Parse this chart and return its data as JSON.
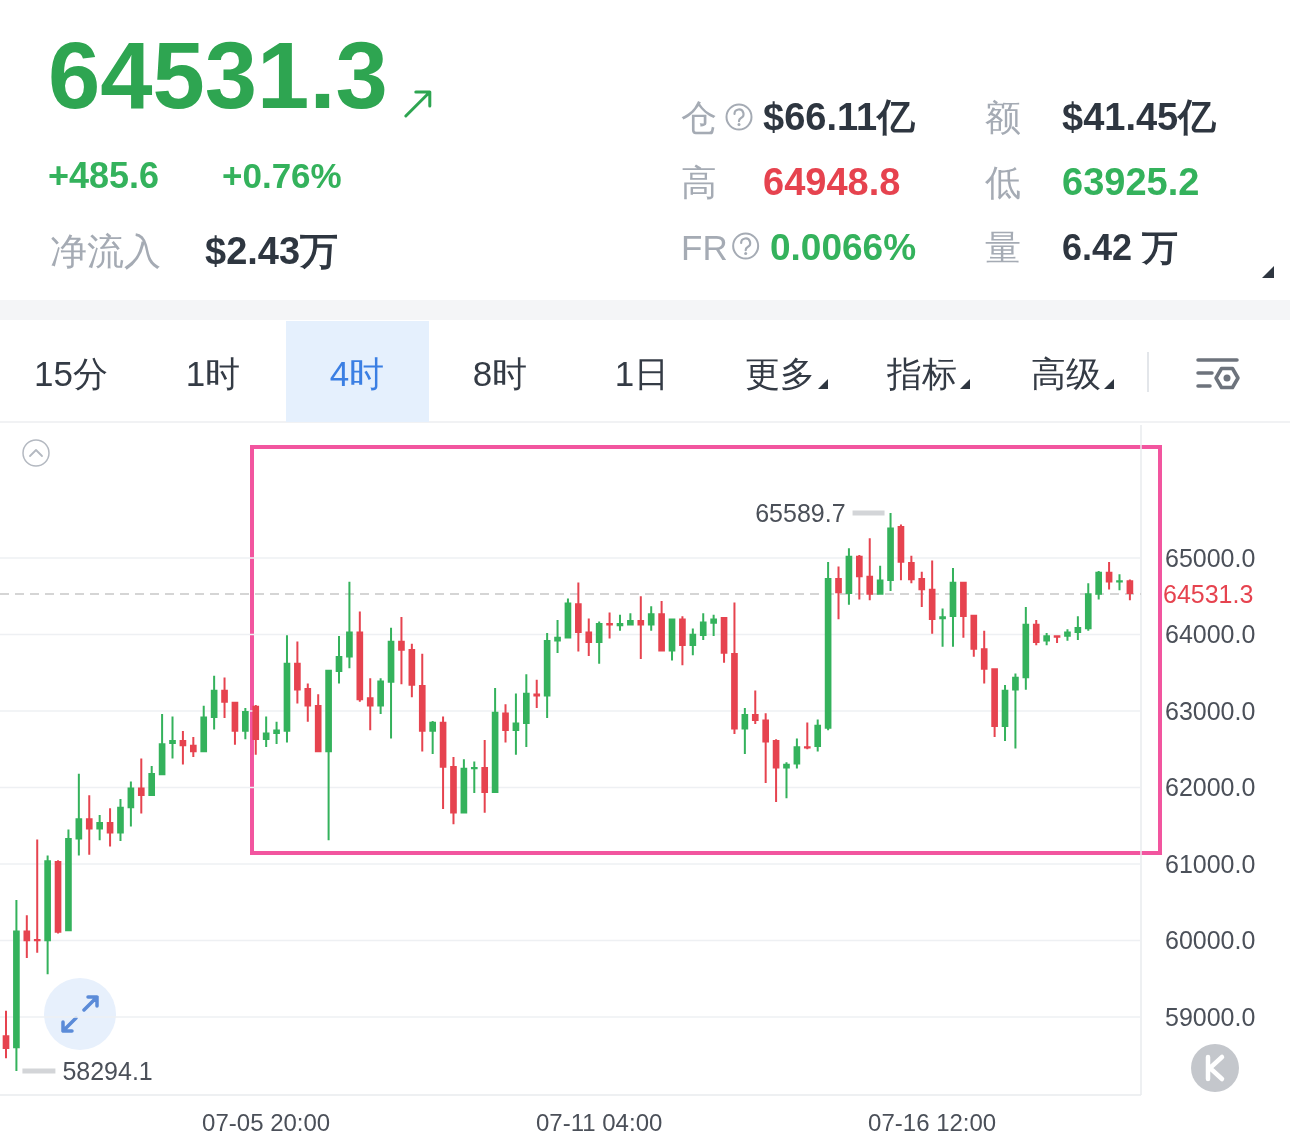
{
  "chart_data": [
    {
      "type": "other",
      "annotations": [
        "64531.3",
        "+485.6",
        "+0.76%",
        "净流入",
        "$2.43万",
        "仓",
        "$66.11亿",
        "额",
        "$41.45亿",
        "高",
        "64948.8",
        "低",
        "63925.2",
        "FR",
        "0.0066%",
        "量",
        "6.42 万"
      ]
    },
    {
      "type": "other",
      "annotations": [
        "15分",
        "1时",
        "4时",
        "8时",
        "1日",
        "更多",
        "指标",
        "高级"
      ]
    },
    {
      "type": "candlestick",
      "categories": [
        null,
        null,
        null,
        null,
        null,
        null,
        null,
        null,
        null,
        null,
        null,
        null,
        null,
        null,
        null,
        null,
        null,
        null,
        null,
        null,
        null,
        null,
        null,
        null,
        null,
        "07-05 20:00",
        null,
        null,
        null,
        null,
        null,
        null,
        null,
        null,
        null,
        null,
        null,
        null,
        null,
        null,
        null,
        null,
        null,
        null,
        null,
        null,
        null,
        null,
        null,
        null,
        null,
        null,
        null,
        null,
        null,
        null,
        null,
        "07-11 04:00",
        null,
        null,
        null,
        null,
        null,
        null,
        null,
        null,
        null,
        null,
        null,
        null,
        null,
        null,
        null,
        null,
        null,
        null,
        null,
        null,
        null,
        null,
        null,
        null,
        null,
        null,
        null,
        null,
        null,
        null,
        null,
        "07-16 12:00",
        null,
        null,
        null,
        null,
        null,
        null,
        null,
        null,
        null,
        null,
        null,
        null,
        null,
        null,
        null,
        null,
        null,
        null,
        null
      ],
      "ohlc": [
        [
          58760,
          59080,
          58460,
          58580
        ],
        [
          58590,
          60530,
          58294.1,
          60130
        ],
        [
          60130,
          60330,
          59770,
          59990
        ],
        [
          60020,
          61320,
          59840,
          59990
        ],
        [
          59990,
          61110,
          59560,
          61050
        ],
        [
          61040,
          61050,
          60090,
          60100
        ],
        [
          60120,
          61450,
          60120,
          61340
        ],
        [
          61320,
          62180,
          61110,
          61600
        ],
        [
          61600,
          61900,
          61120,
          61450
        ],
        [
          61450,
          61640,
          61310,
          61550
        ],
        [
          61550,
          61730,
          61230,
          61400
        ],
        [
          61400,
          61850,
          61300,
          61750
        ],
        [
          61730,
          62080,
          61490,
          62000
        ],
        [
          62000,
          62380,
          61660,
          61890
        ],
        [
          61890,
          62280,
          61890,
          62190
        ],
        [
          62160,
          62960,
          62160,
          62580
        ],
        [
          62570,
          62930,
          62380,
          62620
        ],
        [
          62620,
          62740,
          62300,
          62540
        ],
        [
          62560,
          62660,
          62400,
          62460
        ],
        [
          62460,
          63070,
          62460,
          62930
        ],
        [
          62910,
          63460,
          62760,
          63280
        ],
        [
          63280,
          63440,
          62910,
          63110
        ],
        [
          63120,
          63120,
          62560,
          62730
        ],
        [
          62730,
          63040,
          62630,
          63000
        ],
        [
          63070,
          63080,
          62430,
          62620
        ],
        [
          62620,
          62930,
          62530,
          62720
        ],
        [
          62700,
          62860,
          62570,
          62760
        ],
        [
          62730,
          63990,
          62590,
          63630
        ],
        [
          63630,
          63910,
          63100,
          63270
        ],
        [
          63300,
          63360,
          62860,
          63060
        ],
        [
          63080,
          63220,
          62460,
          62460
        ],
        [
          62460,
          63540,
          61310,
          63540
        ],
        [
          63510,
          63980,
          63360,
          63720
        ],
        [
          63700,
          64690,
          63560,
          64040
        ],
        [
          64040,
          64300,
          63120,
          63140
        ],
        [
          63180,
          63430,
          62750,
          63060
        ],
        [
          63060,
          63430,
          62960,
          63400
        ],
        [
          63370,
          64090,
          62640,
          63920
        ],
        [
          63920,
          64230,
          63350,
          63790
        ],
        [
          63810,
          63880,
          63180,
          63330
        ],
        [
          63340,
          63750,
          62470,
          62730
        ],
        [
          62730,
          62870,
          62440,
          62860
        ],
        [
          62860,
          62930,
          61720,
          62260
        ],
        [
          62280,
          62400,
          61520,
          61660
        ],
        [
          61660,
          62370,
          61660,
          62260
        ],
        [
          62240,
          62340,
          61930,
          62270
        ],
        [
          62270,
          62620,
          61670,
          61930
        ],
        [
          61930,
          63300,
          61930,
          62990
        ],
        [
          62980,
          63090,
          62590,
          62740
        ],
        [
          62740,
          63230,
          62430,
          62850
        ],
        [
          62830,
          63480,
          62530,
          63240
        ],
        [
          63230,
          63410,
          63040,
          63190
        ],
        [
          63190,
          64020,
          62910,
          63930
        ],
        [
          63910,
          64190,
          63760,
          63970
        ],
        [
          63950,
          64470,
          63950,
          64420
        ],
        [
          64410,
          64680,
          63780,
          64020
        ],
        [
          64040,
          64210,
          63720,
          63890
        ],
        [
          63890,
          64170,
          63620,
          64150
        ],
        [
          64150,
          64290,
          63950,
          64120
        ],
        [
          64110,
          64260,
          64050,
          64150
        ],
        [
          64120,
          64280,
          64120,
          64190
        ],
        [
          64190,
          64500,
          63680,
          64120
        ],
        [
          64120,
          64370,
          64050,
          64280
        ],
        [
          64280,
          64440,
          63780,
          63780
        ],
        [
          63780,
          64210,
          63660,
          64210
        ],
        [
          64210,
          64240,
          63600,
          63850
        ],
        [
          63850,
          64080,
          63730,
          64010
        ],
        [
          63980,
          64280,
          63930,
          64170
        ],
        [
          64140,
          64260,
          63980,
          64210
        ],
        [
          64230,
          64230,
          63630,
          63750
        ],
        [
          63760,
          64420,
          62700,
          62760
        ],
        [
          62760,
          63040,
          62440,
          62960
        ],
        [
          62960,
          63270,
          62830,
          62870
        ],
        [
          62890,
          62970,
          62060,
          62590
        ],
        [
          62620,
          62630,
          61810,
          62250
        ],
        [
          62250,
          62330,
          61860,
          62310
        ],
        [
          62300,
          62640,
          62250,
          62540
        ],
        [
          62540,
          62850,
          62500,
          62510
        ],
        [
          62530,
          62890,
          62470,
          62820
        ],
        [
          62770,
          64950,
          62750,
          64740
        ],
        [
          64740,
          64890,
          64200,
          64540
        ],
        [
          64530,
          65130,
          64390,
          65030
        ],
        [
          65030,
          65040,
          64460,
          64750
        ],
        [
          64770,
          65260,
          64450,
          64520
        ],
        [
          64520,
          64900,
          64520,
          64720
        ],
        [
          64700,
          65589.7,
          64570,
          65400
        ],
        [
          65420,
          65440,
          64710,
          64940
        ],
        [
          64950,
          65030,
          64670,
          64710
        ],
        [
          64740,
          64820,
          64360,
          64580
        ],
        [
          64600,
          64970,
          64010,
          64190
        ],
        [
          64200,
          64340,
          63840,
          64240
        ],
        [
          64230,
          64870,
          63840,
          64690
        ],
        [
          64690,
          64690,
          63960,
          64230
        ],
        [
          64260,
          64260,
          63710,
          63800
        ],
        [
          63820,
          64050,
          63360,
          63540
        ],
        [
          63560,
          63560,
          62660,
          62790
        ],
        [
          62790,
          63340,
          62610,
          63280
        ],
        [
          63270,
          63490,
          62510,
          63450
        ],
        [
          63430,
          64360,
          63280,
          64140
        ],
        [
          64140,
          64190,
          63860,
          63890
        ],
        [
          63910,
          64020,
          63860,
          63990
        ],
        [
          63990,
          63990,
          63890,
          63960
        ],
        [
          63970,
          64070,
          63920,
          64040
        ],
        [
          64020,
          64240,
          63930,
          64100
        ],
        [
          64070,
          64670,
          64050,
          64540
        ],
        [
          64520,
          64830,
          64460,
          64820
        ],
        [
          64820,
          64950,
          64590,
          64680
        ],
        [
          64680,
          64790,
          64580,
          64710
        ],
        [
          64710,
          64720,
          64450,
          64531.3
        ]
      ],
      "ylim": [
        57980,
        66740
      ],
      "yticks": [
        {
          "value": 59000,
          "label": "59000.0"
        },
        {
          "value": 60000,
          "label": "60000.0"
        },
        {
          "value": 61000,
          "label": "61000.0"
        },
        {
          "value": 62000,
          "label": "62000.0"
        },
        {
          "value": 63000,
          "label": "63000.0"
        },
        {
          "value": 64000,
          "label": "64000.0"
        },
        {
          "value": 65000,
          "label": "65000.0"
        }
      ],
      "grid": "y",
      "ref_lines": [
        {
          "axis": "y",
          "value": 64531.3,
          "label": "64531.3",
          "color": "#c8c8c8",
          "line_style": "dashed"
        }
      ],
      "annotations": [
        "65589.7",
        "58294.1"
      ]
    }
  ]
}
